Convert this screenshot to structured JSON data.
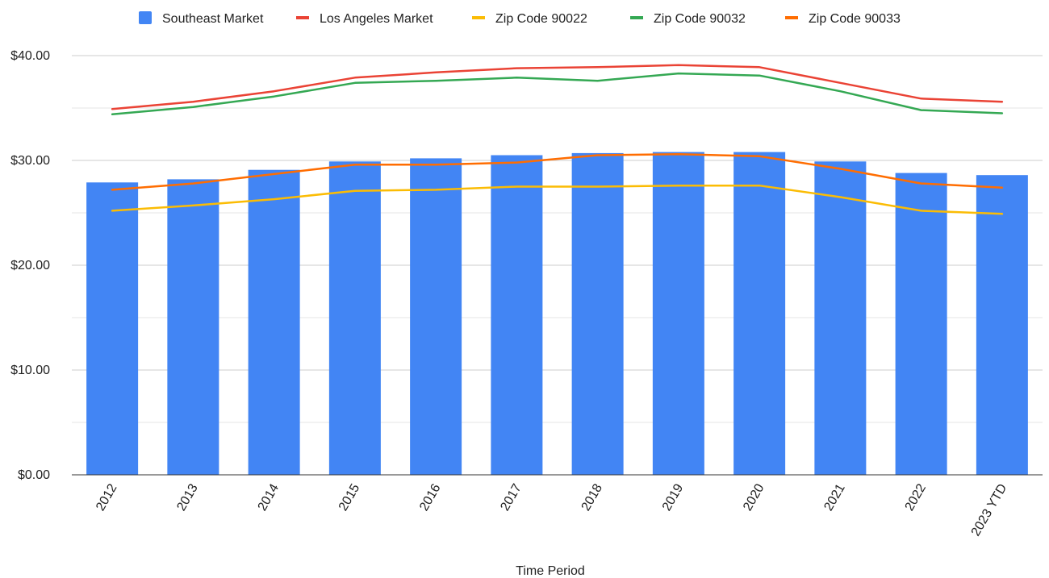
{
  "chart_data": {
    "type": "bar",
    "title": "",
    "xlabel": "Time Period",
    "ylabel": "",
    "categories": [
      "2012",
      "2013",
      "2014",
      "2015",
      "2016",
      "2017",
      "2018",
      "2019",
      "2020",
      "2021",
      "2022",
      "2023 YTD"
    ],
    "ylim": [
      0,
      40
    ],
    "y_ticks": [
      0,
      10,
      20,
      30,
      40
    ],
    "y_tick_labels": [
      "$0.00",
      "$10.00",
      "$20.00",
      "$30.00",
      "$40.00"
    ],
    "grid": true,
    "legend_position": "top",
    "series": [
      {
        "name": "Southeast Market",
        "type": "bar",
        "color": "#4285f4",
        "values": [
          27.9,
          28.2,
          29.1,
          29.9,
          30.2,
          30.5,
          30.7,
          30.8,
          30.8,
          29.9,
          28.8,
          28.6
        ]
      },
      {
        "name": "Los Angeles Market",
        "type": "line",
        "color": "#ea4335",
        "values": [
          34.9,
          35.6,
          36.6,
          37.9,
          38.4,
          38.8,
          38.9,
          39.1,
          38.9,
          37.4,
          35.9,
          35.6
        ]
      },
      {
        "name": "Zip Code 90022",
        "type": "line",
        "color": "#fbbc04",
        "values": [
          25.2,
          25.7,
          26.3,
          27.1,
          27.2,
          27.5,
          27.5,
          27.6,
          27.6,
          26.5,
          25.2,
          24.9
        ]
      },
      {
        "name": "Zip Code 90032",
        "type": "line",
        "color": "#34a853",
        "values": [
          34.4,
          35.1,
          36.1,
          37.4,
          37.6,
          37.9,
          37.6,
          38.3,
          38.1,
          36.6,
          34.8,
          34.5
        ]
      },
      {
        "name": "Zip Code 90033",
        "type": "line",
        "color": "#ff6d01",
        "values": [
          27.2,
          27.8,
          28.7,
          29.6,
          29.6,
          29.8,
          30.5,
          30.6,
          30.4,
          29.2,
          27.8,
          27.4
        ]
      }
    ]
  }
}
